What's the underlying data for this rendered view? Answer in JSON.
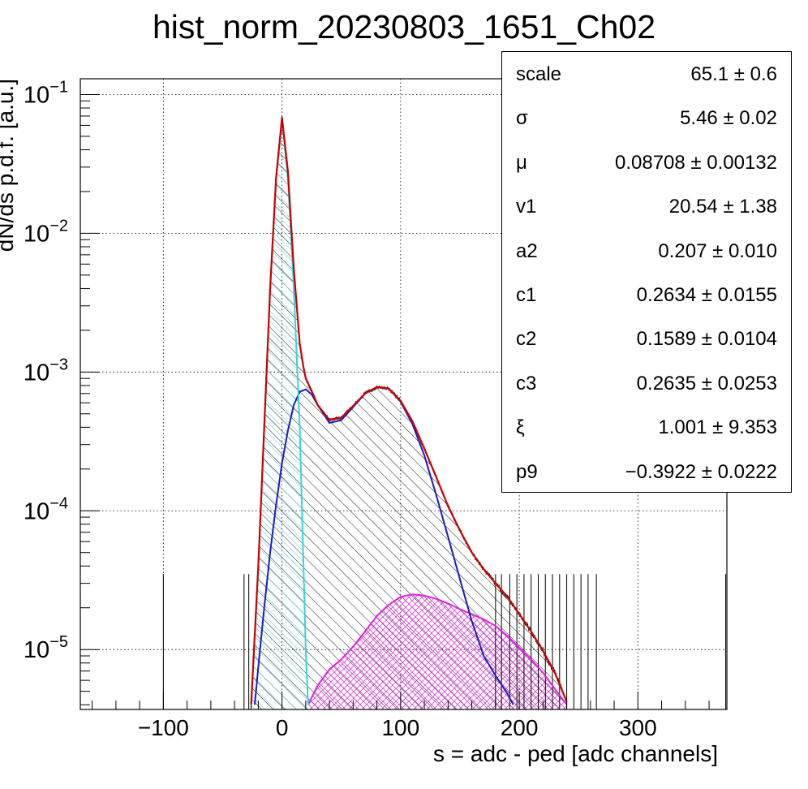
{
  "chart_data": {
    "type": "histogram",
    "title": "hist_norm_20230803_1651_Ch02",
    "xlabel": "s = adc - ped [adc channels]",
    "ylabel": "dN/ds p.d.f. [a.u.]",
    "xlim": [
      -170,
      375
    ],
    "ylim": [
      3.7e-06,
      0.13
    ],
    "yscale": "log",
    "grid": true,
    "x_ticks": [
      -100,
      0,
      100,
      200,
      300
    ],
    "x_tick_labels": [
      "−100",
      "0",
      "100",
      "200",
      "300"
    ],
    "y_ticks": [
      1e-05,
      0.0001,
      0.001,
      0.01,
      0.1
    ],
    "y_tick_bases": [
      "10",
      "10",
      "10",
      "10",
      "10"
    ],
    "y_tick_exps": [
      "−5",
      "−4",
      "−3",
      "−2",
      "−1"
    ],
    "colors": {
      "histogram": "#000000",
      "total_fit": "#cc0000",
      "pedestal": "#33d4e0",
      "signal": "#1a1acc",
      "tail": "#e020e0"
    },
    "series": [
      {
        "component": "total_fit",
        "x": [
          -26,
          -20,
          -15,
          -10,
          -5,
          0,
          5,
          10,
          15,
          18,
          20,
          25,
          30,
          40,
          50,
          60,
          70,
          80,
          90,
          100,
          110,
          120,
          130,
          140,
          150,
          160,
          170,
          180,
          190,
          200,
          210,
          220,
          230,
          240
        ],
        "y": [
          4e-06,
          4e-05,
          0.0004,
          0.004,
          0.025,
          0.068,
          0.028,
          0.0055,
          0.0016,
          0.0011,
          0.0009,
          0.00073,
          0.00058,
          0.00045,
          0.00047,
          0.00057,
          0.0007,
          0.00078,
          0.00076,
          0.00062,
          0.00044,
          0.00028,
          0.000175,
          0.000108,
          7.2e-05,
          5e-05,
          3.8e-05,
          3e-05,
          2.4e-05,
          1.8e-05,
          1.35e-05,
          9.8e-06,
          6.8e-06,
          4.2e-06
        ]
      },
      {
        "component": "pedestal",
        "x": [
          -26,
          -20,
          -15,
          -10,
          -5,
          0,
          5,
          10,
          15,
          20,
          22
        ],
        "y": [
          4e-06,
          4e-05,
          0.0004,
          0.004,
          0.025,
          0.068,
          0.025,
          0.004,
          0.0004,
          1e-05,
          4e-06
        ]
      },
      {
        "component": "signal",
        "x": [
          -23,
          -20,
          -15,
          -10,
          -5,
          0,
          5,
          10,
          15,
          20,
          25,
          30,
          40,
          50,
          60,
          70,
          80,
          90,
          100,
          110,
          120,
          130,
          140,
          150,
          160,
          170,
          180,
          190,
          195
        ],
        "y": [
          4e-06,
          7.5e-06,
          2e-05,
          5e-05,
          0.00011,
          0.00022,
          0.00038,
          0.00058,
          0.00072,
          0.00075,
          0.00069,
          0.00058,
          0.00043,
          0.00045,
          0.00056,
          0.0007,
          0.00078,
          0.00076,
          0.00061,
          0.00042,
          0.00025,
          0.00013,
          6.5e-05,
          3.2e-05,
          1.6e-05,
          9e-06,
          6.5e-06,
          4.8e-06,
          4e-06
        ]
      },
      {
        "component": "tail",
        "x": [
          22,
          30,
          40,
          50,
          60,
          70,
          80,
          90,
          100,
          110,
          120,
          130,
          140,
          150,
          160,
          170,
          180,
          190,
          200,
          210,
          220,
          230,
          240
        ],
        "y": [
          4e-06,
          5.5e-06,
          7.2e-06,
          8.5e-06,
          1.05e-05,
          1.35e-05,
          1.75e-05,
          2.1e-05,
          2.4e-05,
          2.5e-05,
          2.45e-05,
          2.32e-05,
          2.15e-05,
          1.95e-05,
          1.8e-05,
          1.65e-05,
          1.48e-05,
          1.25e-05,
          1.03e-05,
          8.5e-06,
          6.8e-06,
          5.2e-06,
          4e-06
        ]
      }
    ],
    "stats": [
      {
        "name": "scale",
        "value": "65.1 ± 0.6"
      },
      {
        "name": "σ",
        "value": "5.46 ± 0.02"
      },
      {
        "name": "μ",
        "value": "0.08708 ± 0.00132"
      },
      {
        "name": "v1",
        "value": "20.54 ± 1.38"
      },
      {
        "name": "a2",
        "value": "0.207 ± 0.010"
      },
      {
        "name": "c1",
        "value": "0.2634 ± 0.0155"
      },
      {
        "name": "c2",
        "value": "0.1589 ± 0.0104"
      },
      {
        "name": "c3",
        "value": "0.2635 ± 0.0253"
      },
      {
        "name": "ξ",
        "value": "1.001 ± 9.353"
      },
      {
        "name": "p9",
        "value": "−0.3922 ± 0.0222"
      }
    ]
  }
}
